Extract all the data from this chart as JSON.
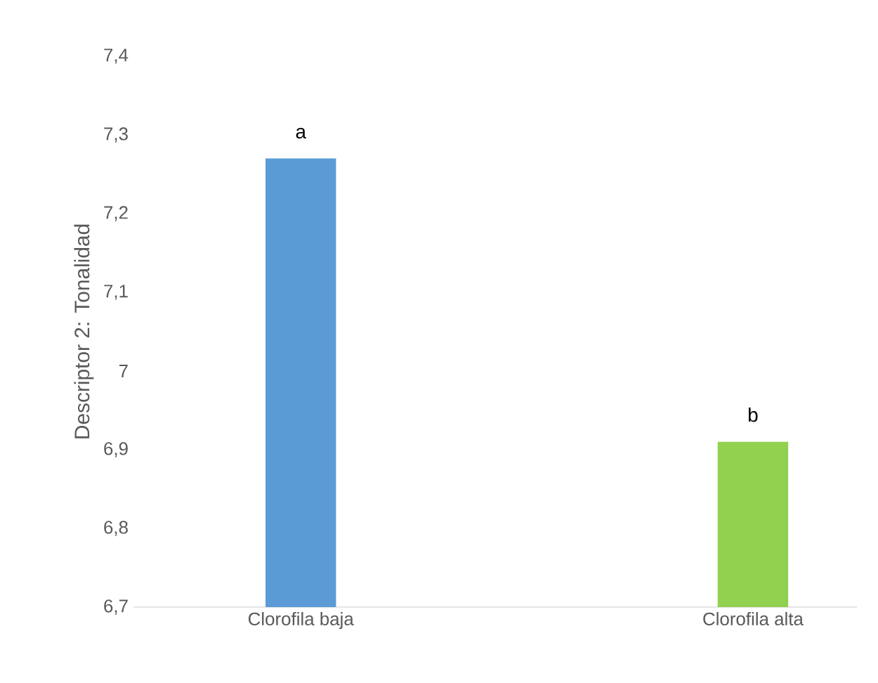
{
  "chart_data": {
    "type": "bar",
    "ylabel": "Descriptor 2: Tonalidad",
    "categories": [
      "Clorofila baja",
      "Clorofila alta"
    ],
    "values": [
      7.27,
      6.91
    ],
    "colors": [
      "#5b9bd5",
      "#92d050"
    ],
    "ylim": [
      6.7,
      7.4
    ],
    "yticks": [
      {
        "value": 6.7,
        "label": "6,7"
      },
      {
        "value": 6.8,
        "label": "6,8"
      },
      {
        "value": 6.9,
        "label": "6,9"
      },
      7,
      {
        "value": 7.1,
        "label": "7,1"
      },
      {
        "value": 7.2,
        "label": "7,2"
      },
      {
        "value": 7.3,
        "label": "7,3"
      },
      {
        "value": 7.4,
        "label": "7,4"
      }
    ],
    "annotations": [
      {
        "text": "a",
        "x": "Clorofila baja",
        "y": 7.27
      },
      {
        "text": "b",
        "x": "Clorofila alta",
        "y": 6.91
      }
    ],
    "grid": false
  }
}
